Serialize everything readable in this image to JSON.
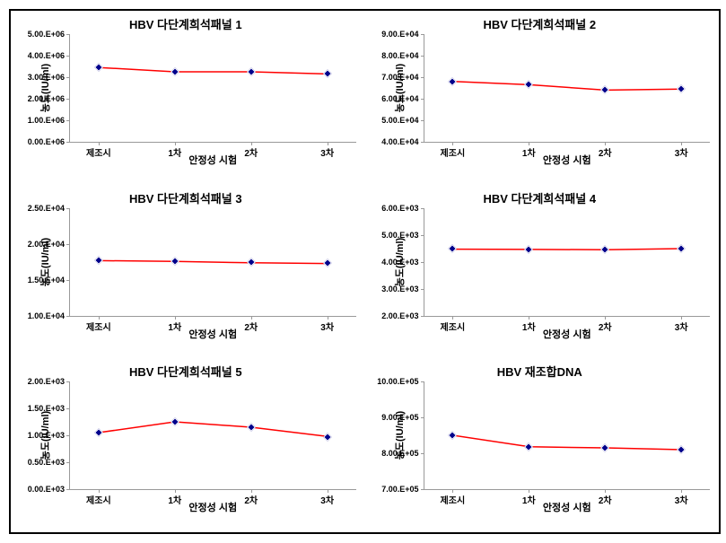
{
  "global": {
    "x_categories": [
      "제조시",
      "1차",
      "2차",
      "3차"
    ],
    "x_axis_label": "안정성 시험",
    "y_axis_label": "농도(IU/ml)",
    "line_color": "#ff0000",
    "marker_fill": "#00008b",
    "marker_border": "#ffffff",
    "marker_size": 5,
    "line_width": 1.5,
    "title_fontsize": 13,
    "axis_fontsize": 11,
    "tick_fontsize": 9,
    "background": "#ffffff",
    "border_color": "#000000"
  },
  "charts": [
    {
      "title": "HBV 다단계희석패널 1",
      "ymin": 0.0,
      "ymax": 5000000.0,
      "ystep": 1000000.0,
      "exp": 6,
      "values": [
        3450000.0,
        3250000.0,
        3250000.0,
        3150000.0
      ]
    },
    {
      "title": "HBV 다단계희석패널 2",
      "ymin": 40000.0,
      "ymax": 90000.0,
      "ystep": 10000.0,
      "exp": 4,
      "values": [
        68000.0,
        66500.0,
        64000.0,
        64500.0
      ]
    },
    {
      "title": "HBV 다단계희석패널 3",
      "ymin": 10000.0,
      "ymax": 25000.0,
      "ystep": 5000.0,
      "exp": 4,
      "values": [
        17700.0,
        17600.0,
        17400.0,
        17300.0
      ]
    },
    {
      "title": "HBV 다단계희석패널 4",
      "ymin": 2000.0,
      "ymax": 6000.0,
      "ystep": 1000.0,
      "exp": 3,
      "values": [
        4480.0,
        4470.0,
        4460.0,
        4500.0
      ]
    },
    {
      "title": "HBV 다단계희석패널 5",
      "ymin": 0.0,
      "ymax": 2000.0,
      "ystep": 500.0,
      "exp": 3,
      "values": [
        1050.0,
        1250.0,
        1150.0,
        980.0
      ]
    },
    {
      "title": "HBV 재조합DNA",
      "ymin": 700000.0,
      "ymax": 1000000.0,
      "ystep": 100000.0,
      "exp": 5,
      "values": [
        850000.0,
        818000.0,
        815000.0,
        810000.0
      ]
    }
  ]
}
